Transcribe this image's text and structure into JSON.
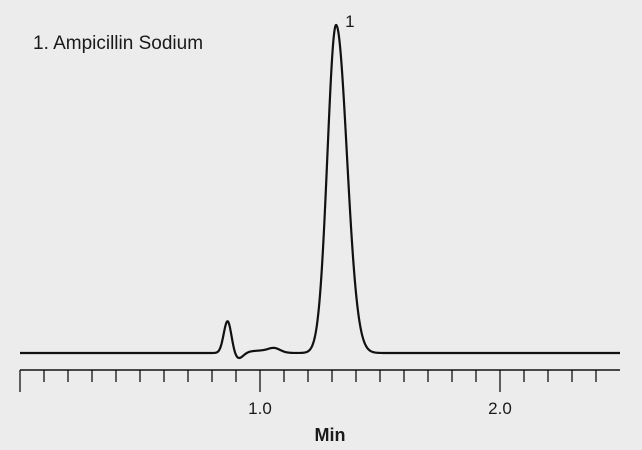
{
  "chart_data": {
    "type": "line",
    "title": "",
    "legend": [
      "1.  Ampicillin Sodium"
    ],
    "legend_placement": "top-left",
    "xlabel": "Min",
    "ylabel": "",
    "xlim": [
      0.0,
      2.5
    ],
    "major_ticks": [
      0.0,
      1.0,
      2.0
    ],
    "tick_labels": [
      {
        "value": 1.0,
        "label": "1.0"
      },
      {
        "value": 2.0,
        "label": "2.0"
      }
    ],
    "minor_tick_step": 0.1,
    "grid": false,
    "line_color": "#111111",
    "y_units": "relative response (max = 100)",
    "peaks": [
      {
        "label": "",
        "time": 0.865,
        "height": 9.8,
        "width": 0.016
      },
      {
        "label": "",
        "time": 0.91,
        "height": -1.8,
        "width": 0.02
      },
      {
        "label": "",
        "time": 1.06,
        "height": 1.2,
        "width": 0.025
      },
      {
        "label": "",
        "time": 1.0,
        "height": 0.7,
        "width": 0.05
      },
      {
        "label": "1",
        "time": 1.317,
        "height": 100,
        "width": 0.036
      }
    ]
  }
}
